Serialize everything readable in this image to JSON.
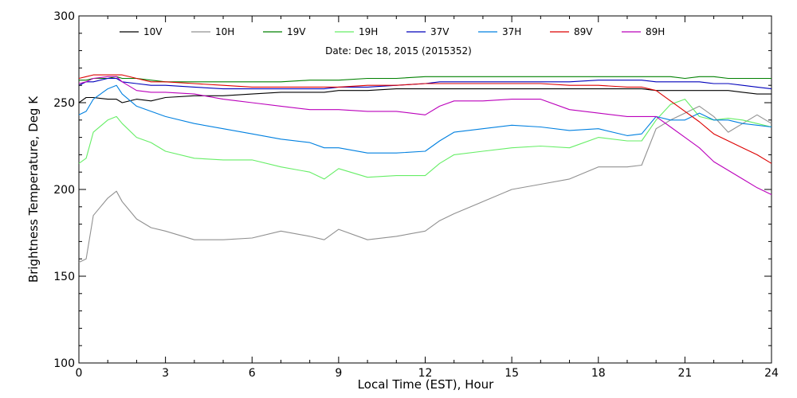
{
  "chart_data": {
    "type": "line",
    "title": "",
    "annotation": "Date: Dec 18, 2015 (2015352)",
    "xlabel": "Local Time (EST), Hour",
    "ylabel": "Brightness Temperature, Deg K",
    "xlim": [
      0,
      24
    ],
    "ylim": [
      100,
      300
    ],
    "x_ticks": [
      0,
      3,
      6,
      9,
      12,
      15,
      18,
      21,
      24
    ],
    "y_ticks": [
      100,
      150,
      200,
      250,
      300
    ],
    "x_tick_labels": [
      "0",
      "3",
      "6",
      "9",
      "12",
      "15",
      "18",
      "21",
      "24"
    ],
    "y_tick_labels": [
      "100",
      "150",
      "200",
      "250",
      "300"
    ],
    "grid": false,
    "legend_position": "top",
    "x": [
      0,
      0.25,
      0.5,
      1,
      1.3,
      1.5,
      2,
      2.5,
      3,
      4,
      5,
      6,
      7,
      8,
      8.5,
      9,
      10,
      11,
      12,
      12.5,
      13,
      14,
      15,
      16,
      17,
      18,
      19,
      19.5,
      20,
      20.5,
      21,
      21.5,
      22,
      22.5,
      23,
      23.5,
      24
    ],
    "series": [
      {
        "name": "10V",
        "color": "#000000",
        "values": [
          250,
          253,
          253,
          252,
          252,
          250,
          252,
          251,
          253,
          254,
          254,
          255,
          256,
          256,
          256,
          257,
          257,
          258,
          258,
          258,
          258,
          258,
          258,
          258,
          258,
          258,
          258,
          258,
          257,
          257,
          257,
          257,
          257,
          257,
          256,
          255,
          255
        ]
      },
      {
        "name": "10H",
        "color": "#909090",
        "values": [
          158,
          160,
          185,
          195,
          199,
          193,
          183,
          178,
          176,
          171,
          171,
          172,
          176,
          173,
          171,
          177,
          171,
          173,
          176,
          182,
          186,
          193,
          200,
          203,
          206,
          213,
          213,
          214,
          235,
          240,
          244,
          248,
          242,
          233,
          238,
          243,
          238
        ]
      },
      {
        "name": "19V",
        "color": "#008000",
        "values": [
          263,
          263,
          264,
          264,
          265,
          264,
          264,
          263,
          262,
          262,
          262,
          262,
          262,
          263,
          263,
          263,
          264,
          264,
          265,
          265,
          265,
          265,
          265,
          265,
          265,
          265,
          265,
          265,
          265,
          265,
          264,
          265,
          265,
          264,
          264,
          264,
          264
        ]
      },
      {
        "name": "19H",
        "color": "#66ee66",
        "values": [
          215,
          218,
          233,
          240,
          242,
          238,
          230,
          227,
          222,
          218,
          217,
          217,
          213,
          210,
          206,
          212,
          207,
          208,
          208,
          215,
          220,
          222,
          224,
          225,
          224,
          230,
          228,
          228,
          240,
          249,
          252,
          242,
          240,
          241,
          240,
          238,
          236
        ]
      },
      {
        "name": "37V",
        "color": "#0000bb",
        "values": [
          260,
          262,
          262,
          264,
          264,
          262,
          261,
          260,
          260,
          259,
          258,
          258,
          258,
          258,
          258,
          259,
          259,
          260,
          261,
          262,
          262,
          262,
          262,
          262,
          262,
          263,
          263,
          263,
          262,
          262,
          262,
          262,
          261,
          261,
          260,
          259,
          258
        ]
      },
      {
        "name": "37H",
        "color": "#0080e0",
        "values": [
          243,
          245,
          252,
          258,
          260,
          255,
          248,
          245,
          242,
          238,
          235,
          232,
          229,
          227,
          224,
          224,
          221,
          221,
          222,
          228,
          233,
          235,
          237,
          236,
          234,
          235,
          231,
          232,
          242,
          240,
          240,
          244,
          240,
          240,
          238,
          237,
          236
        ]
      },
      {
        "name": "89V",
        "color": "#dd0000",
        "values": [
          264,
          265,
          266,
          266,
          266,
          266,
          264,
          262,
          262,
          261,
          260,
          259,
          259,
          259,
          259,
          259,
          260,
          260,
          261,
          261,
          261,
          261,
          261,
          261,
          260,
          260,
          259,
          259,
          257,
          251,
          245,
          239,
          232,
          228,
          224,
          220,
          215
        ]
      },
      {
        "name": "89H",
        "color": "#bb00bb",
        "values": [
          261,
          262,
          264,
          265,
          265,
          262,
          257,
          256,
          256,
          255,
          252,
          250,
          248,
          246,
          246,
          246,
          245,
          245,
          243,
          248,
          251,
          251,
          252,
          252,
          246,
          244,
          242,
          242,
          242,
          236,
          230,
          224,
          216,
          211,
          206,
          201,
          197
        ]
      }
    ]
  }
}
